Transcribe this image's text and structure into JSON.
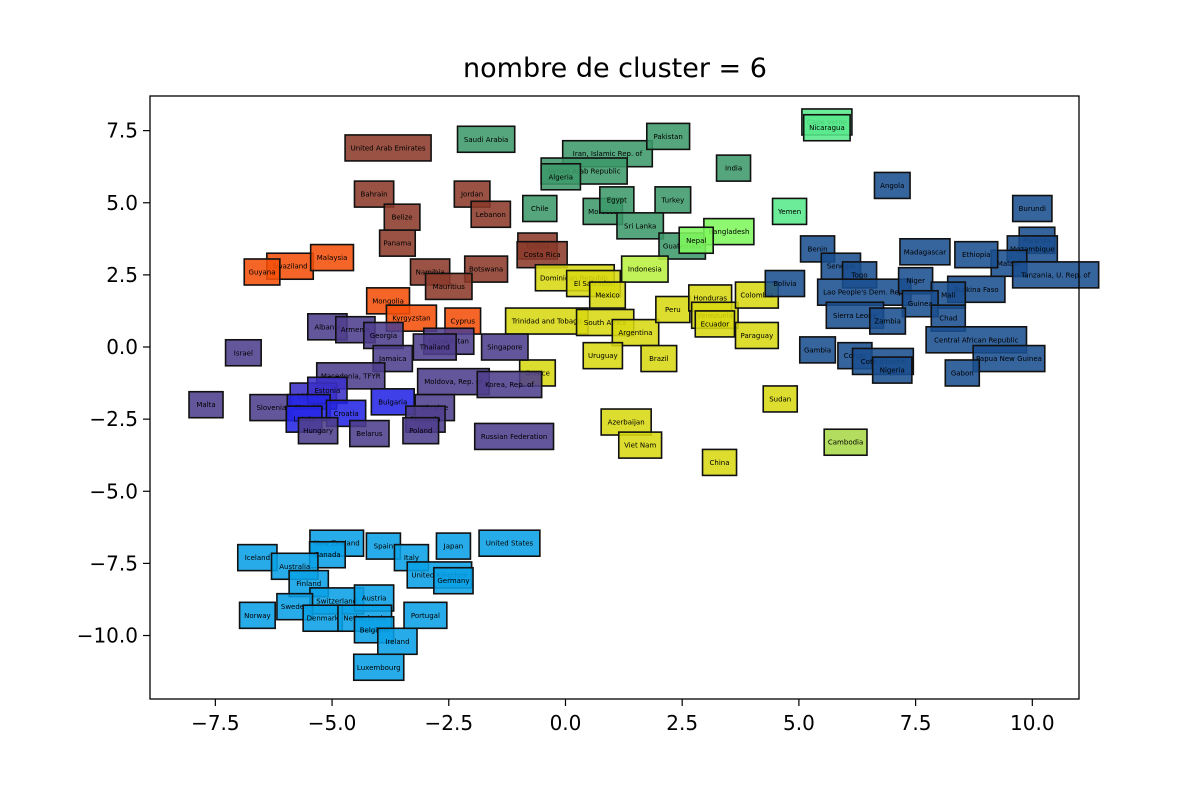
{
  "chart_data": {
    "type": "scatter",
    "title": "nombre de cluster = 6",
    "xlabel": "",
    "ylabel": "",
    "xlim": [
      -8.9,
      11.0
    ],
    "ylim": [
      -12.2,
      8.7
    ],
    "xticks": [
      -7.5,
      -5.0,
      -2.5,
      0.0,
      2.5,
      5.0,
      7.5,
      10.0
    ],
    "xtick_labels": [
      "−7.5",
      "−5.0",
      "−2.5",
      "0.0",
      "2.5",
      "5.0",
      "7.5",
      "10.0"
    ],
    "yticks": [
      -10.0,
      -7.5,
      -5.0,
      -2.5,
      0.0,
      2.5,
      5.0,
      7.5
    ],
    "ytick_labels": [
      "−10.0",
      "−7.5",
      "−5.0",
      "−2.5",
      "0.0",
      "2.5",
      "5.0",
      "7.5"
    ],
    "grid": false,
    "point_style": "labelled boxes",
    "colors": {
      "dark_red": "#8B3A2A",
      "orange": "#F5500A",
      "dark_green": "#3E9A6A",
      "light_green": "#7EF85C",
      "yellow": "#D8D812",
      "purple": "#4E3F8C",
      "blue": "#2626E6",
      "navy": "#1A4E8F",
      "sky": "#0AA0E6"
    },
    "points": [
      {
        "label": "United Arab Emirates",
        "x": -3.8,
        "y": 6.9,
        "color": "#8B3A2A"
      },
      {
        "label": "Bahrain",
        "x": -4.1,
        "y": 5.3,
        "color": "#8B3A2A"
      },
      {
        "label": "Belize",
        "x": -3.5,
        "y": 4.5,
        "color": "#8B3A2A"
      },
      {
        "label": "Panama",
        "x": -3.6,
        "y": 3.6,
        "color": "#8B3A2A"
      },
      {
        "label": "Jordan",
        "x": -2.0,
        "y": 5.3,
        "color": "#8B3A2A"
      },
      {
        "label": "Lebanon",
        "x": -1.6,
        "y": 4.6,
        "color": "#8B3A2A"
      },
      {
        "label": "Namibia",
        "x": -2.9,
        "y": 2.6,
        "color": "#8B3A2A"
      },
      {
        "label": "Botswana",
        "x": -1.7,
        "y": 2.7,
        "color": "#8B3A2A"
      },
      {
        "label": "Mauritius",
        "x": -2.5,
        "y": 2.1,
        "color": "#8B3A2A"
      },
      {
        "label": "Tunisia",
        "x": -0.6,
        "y": 3.5,
        "color": "#8B3A2A"
      },
      {
        "label": "Costa Rica",
        "x": -0.5,
        "y": 3.2,
        "color": "#8B3A2A"
      },
      {
        "label": "Swaziland",
        "x": -5.9,
        "y": 2.8,
        "color": "#F5500A"
      },
      {
        "label": "Guyana",
        "x": -6.5,
        "y": 2.6,
        "color": "#F5500A"
      },
      {
        "label": "Malaysia",
        "x": -5.0,
        "y": 3.1,
        "color": "#F5500A"
      },
      {
        "label": "Mongolia",
        "x": -3.8,
        "y": 1.6,
        "color": "#F5500A"
      },
      {
        "label": "Kyrgyzstan",
        "x": -3.3,
        "y": 1.0,
        "color": "#F5500A"
      },
      {
        "label": "Cyprus",
        "x": -2.2,
        "y": 0.9,
        "color": "#F5500A"
      },
      {
        "label": "Saudi Arabia",
        "x": -1.7,
        "y": 7.2,
        "color": "#3E9A6A"
      },
      {
        "label": "Iran, Islamic Rep. of",
        "x": 0.9,
        "y": 6.7,
        "color": "#3E9A6A"
      },
      {
        "label": "Pakistan",
        "x": 2.2,
        "y": 7.3,
        "color": "#3E9A6A"
      },
      {
        "label": "Syrian Arab Republic",
        "x": 0.4,
        "y": 6.1,
        "color": "#3E9A6A"
      },
      {
        "label": "Algeria",
        "x": -0.1,
        "y": 5.9,
        "color": "#3E9A6A"
      },
      {
        "label": "India",
        "x": 3.6,
        "y": 6.2,
        "color": "#3E9A6A"
      },
      {
        "label": "Chile",
        "x": -0.55,
        "y": 4.8,
        "color": "#3E9A6A"
      },
      {
        "label": "Morocco",
        "x": 0.8,
        "y": 4.7,
        "color": "#3E9A6A"
      },
      {
        "label": "Egypt",
        "x": 1.1,
        "y": 5.1,
        "color": "#3E9A6A"
      },
      {
        "label": "Turkey",
        "x": 2.3,
        "y": 5.1,
        "color": "#3E9A6A"
      },
      {
        "label": "Sri Lanka",
        "x": 1.6,
        "y": 4.2,
        "color": "#3E9A6A"
      },
      {
        "label": "Guatemala",
        "x": 2.5,
        "y": 3.5,
        "color": "#3E9A6A"
      },
      {
        "label": "Cape Verde",
        "x": 5.6,
        "y": 7.8,
        "color": "#58E88A"
      },
      {
        "label": "Nicaragua",
        "x": 5.6,
        "y": 7.6,
        "color": "#58E88A"
      },
      {
        "label": "Yemen",
        "x": 4.8,
        "y": 4.7,
        "color": "#58E88A"
      },
      {
        "label": "Bangladesh",
        "x": 3.5,
        "y": 4.0,
        "color": "#7EF85C"
      },
      {
        "label": "Nepal",
        "x": 2.8,
        "y": 3.7,
        "color": "#7EF85C"
      },
      {
        "label": "Indonesia",
        "x": 1.7,
        "y": 2.7,
        "color": "#B8F040"
      },
      {
        "label": "Dominican Republic",
        "x": 0.2,
        "y": 2.4,
        "color": "#D8D812"
      },
      {
        "label": "El Salvador",
        "x": 0.6,
        "y": 2.2,
        "color": "#D8D812"
      },
      {
        "label": "Mexico",
        "x": 0.9,
        "y": 1.8,
        "color": "#D8D812"
      },
      {
        "label": "Trinidad and Tobago",
        "x": -0.4,
        "y": 0.9,
        "color": "#D8D812"
      },
      {
        "label": "South Africa",
        "x": 0.85,
        "y": 0.85,
        "color": "#D8D812"
      },
      {
        "label": "Argentina",
        "x": 1.5,
        "y": 0.5,
        "color": "#D8D812"
      },
      {
        "label": "Peru",
        "x": 2.3,
        "y": 1.3,
        "color": "#D8D812"
      },
      {
        "label": "Honduras",
        "x": 3.1,
        "y": 1.7,
        "color": "#D8D812"
      },
      {
        "label": "Venezuela",
        "x": 3.2,
        "y": 1.1,
        "color": "#D8D812"
      },
      {
        "label": "Ecuador",
        "x": 3.2,
        "y": 0.8,
        "color": "#D8D812"
      },
      {
        "label": "Colombia",
        "x": 4.1,
        "y": 1.8,
        "color": "#D8D812"
      },
      {
        "label": "Paraguay",
        "x": 4.1,
        "y": 0.4,
        "color": "#D8D812"
      },
      {
        "label": "Uruguay",
        "x": 0.8,
        "y": -0.3,
        "color": "#D8D812"
      },
      {
        "label": "Brazil",
        "x": 2.0,
        "y": -0.4,
        "color": "#D8D812"
      },
      {
        "label": "Greece",
        "x": -0.6,
        "y": -0.9,
        "color": "#D8D812"
      },
      {
        "label": "Sudan",
        "x": 4.6,
        "y": -1.8,
        "color": "#D8D812"
      },
      {
        "label": "Azerbaijan",
        "x": 1.3,
        "y": -2.6,
        "color": "#D8D812"
      },
      {
        "label": "Viet Nam",
        "x": 1.6,
        "y": -3.4,
        "color": "#D8D812"
      },
      {
        "label": "China",
        "x": 3.3,
        "y": -4.0,
        "color": "#D8D812"
      },
      {
        "label": "Cambodia",
        "x": 6.0,
        "y": -3.3,
        "color": "#A8D848"
      },
      {
        "label": "Israel",
        "x": -6.9,
        "y": -0.2,
        "color": "#4E3F8C"
      },
      {
        "label": "Albania",
        "x": -5.1,
        "y": 0.7,
        "color": "#4E3F8C"
      },
      {
        "label": "Armenia",
        "x": -4.5,
        "y": 0.6,
        "color": "#4E3F8C"
      },
      {
        "label": "Georgia",
        "x": -3.9,
        "y": 0.4,
        "color": "#4E3F8C"
      },
      {
        "label": "Kazakhstan",
        "x": -2.5,
        "y": 0.2,
        "color": "#4E3F8C"
      },
      {
        "label": "Thailand",
        "x": -2.8,
        "y": 0.0,
        "color": "#4E3F8C"
      },
      {
        "label": "Singapore",
        "x": -1.3,
        "y": 0.0,
        "color": "#4E3F8C"
      },
      {
        "label": "Jamaica",
        "x": -3.7,
        "y": -0.4,
        "color": "#4E3F8C"
      },
      {
        "label": "Macedonia, TFYR",
        "x": -4.6,
        "y": -1.0,
        "color": "#4E3F8C"
      },
      {
        "label": "Moldova, Rep. of",
        "x": -2.4,
        "y": -1.2,
        "color": "#4E3F8C"
      },
      {
        "label": "Korea, Rep. of",
        "x": -1.2,
        "y": -1.3,
        "color": "#4E3F8C"
      },
      {
        "label": "Malta",
        "x": -7.7,
        "y": -2.0,
        "color": "#4E3F8C"
      },
      {
        "label": "Slovenia",
        "x": -6.3,
        "y": -2.1,
        "color": "#4E3F8C"
      },
      {
        "label": "Lithuania",
        "x": -5.4,
        "y": -1.7,
        "color": "#3A30C8"
      },
      {
        "label": "Estonia",
        "x": -5.1,
        "y": -1.5,
        "color": "#3A30C8"
      },
      {
        "label": "Slovakia",
        "x": -5.5,
        "y": -2.1,
        "color": "#2626E6"
      },
      {
        "label": "Croatia",
        "x": -4.7,
        "y": -2.3,
        "color": "#2626E6"
      },
      {
        "label": "Latvia",
        "x": -5.6,
        "y": -2.5,
        "color": "#2626E6"
      },
      {
        "label": "Bulgaria",
        "x": -3.7,
        "y": -1.9,
        "color": "#2626E6"
      },
      {
        "label": "Ukraine",
        "x": -2.8,
        "y": -2.1,
        "color": "#4E3F8C"
      },
      {
        "label": "Romania",
        "x": -3.0,
        "y": -2.5,
        "color": "#4E3F8C"
      },
      {
        "label": "Hungary",
        "x": -5.3,
        "y": -2.9,
        "color": "#4E3F8C"
      },
      {
        "label": "Belarus",
        "x": -4.2,
        "y": -3.0,
        "color": "#4E3F8C"
      },
      {
        "label": "Poland",
        "x": -3.1,
        "y": -2.9,
        "color": "#4E3F8C"
      },
      {
        "label": "Russian Federation",
        "x": -1.1,
        "y": -3.1,
        "color": "#4E3F8C"
      },
      {
        "label": "Angola",
        "x": 7.0,
        "y": 5.6,
        "color": "#1A4E8F"
      },
      {
        "label": "Burundi",
        "x": 10.0,
        "y": 4.8,
        "color": "#1A4E8F"
      },
      {
        "label": "Rwanda",
        "x": 10.1,
        "y": 3.7,
        "color": "#1A4E8F"
      },
      {
        "label": "Mozambique",
        "x": 10.0,
        "y": 3.4,
        "color": "#1A4E8F"
      },
      {
        "label": "Malawi",
        "x": 9.5,
        "y": 2.9,
        "color": "#1A4E8F"
      },
      {
        "label": "Tanzania, U. Rep. of",
        "x": 10.5,
        "y": 2.5,
        "color": "#1A4E8F"
      },
      {
        "label": "Ethiopia",
        "x": 8.8,
        "y": 3.2,
        "color": "#1A4E8F"
      },
      {
        "label": "Madagascar",
        "x": 7.7,
        "y": 3.3,
        "color": "#1A4E8F"
      },
      {
        "label": "Benin",
        "x": 5.4,
        "y": 3.4,
        "color": "#1A4E8F"
      },
      {
        "label": "Senegal",
        "x": 5.9,
        "y": 2.8,
        "color": "#1A4E8F"
      },
      {
        "label": "Togo",
        "x": 6.3,
        "y": 2.5,
        "color": "#1A4E8F"
      },
      {
        "label": "Bolivia",
        "x": 4.7,
        "y": 2.2,
        "color": "#1A4E8F"
      },
      {
        "label": "Lao People's Dem. Rep.",
        "x": 6.4,
        "y": 1.9,
        "color": "#1A4E8F"
      },
      {
        "label": "Niger",
        "x": 7.5,
        "y": 2.3,
        "color": "#1A4E8F"
      },
      {
        "label": "Burkina Faso",
        "x": 8.8,
        "y": 2.0,
        "color": "#1A4E8F"
      },
      {
        "label": "Mali",
        "x": 8.2,
        "y": 1.8,
        "color": "#1A4E8F"
      },
      {
        "label": "Guinea",
        "x": 7.6,
        "y": 1.5,
        "color": "#1A4E8F"
      },
      {
        "label": "Sierra Leone",
        "x": 6.2,
        "y": 1.1,
        "color": "#1A4E8F"
      },
      {
        "label": "Zambia",
        "x": 6.9,
        "y": 0.9,
        "color": "#1A4E8F"
      },
      {
        "label": "Chad",
        "x": 8.2,
        "y": 1.0,
        "color": "#1A4E8F"
      },
      {
        "label": "Central African Republic",
        "x": 8.8,
        "y": 0.25,
        "color": "#1A4E8F"
      },
      {
        "label": "Gambia",
        "x": 5.4,
        "y": -0.1,
        "color": "#1A4E8F"
      },
      {
        "label": "Congo",
        "x": 6.2,
        "y": -0.3,
        "color": "#1A4E8F"
      },
      {
        "label": "Cote d'Ivoire",
        "x": 6.8,
        "y": -0.5,
        "color": "#1A4E8F"
      },
      {
        "label": "Nigeria",
        "x": 7.0,
        "y": -0.8,
        "color": "#1A4E8F"
      },
      {
        "label": "Papua New Guinea",
        "x": 9.5,
        "y": -0.4,
        "color": "#1A4E8F"
      },
      {
        "label": "Gabon",
        "x": 8.5,
        "y": -0.9,
        "color": "#1A4E8F"
      },
      {
        "label": "United States",
        "x": -1.2,
        "y": -6.8,
        "color": "#0AA0E6"
      },
      {
        "label": "Iceland",
        "x": -6.6,
        "y": -7.3,
        "color": "#0AA0E6"
      },
      {
        "label": "New Zealand",
        "x": -4.9,
        "y": -6.8,
        "color": "#0AA0E6"
      },
      {
        "label": "Spain",
        "x": -3.9,
        "y": -6.9,
        "color": "#0AA0E6"
      },
      {
        "label": "Canada",
        "x": -5.1,
        "y": -7.2,
        "color": "#0AA0E6"
      },
      {
        "label": "Japan",
        "x": -2.4,
        "y": -6.9,
        "color": "#0AA0E6"
      },
      {
        "label": "Italy",
        "x": -3.3,
        "y": -7.3,
        "color": "#0AA0E6"
      },
      {
        "label": "Australia",
        "x": -5.8,
        "y": -7.6,
        "color": "#0AA0E6"
      },
      {
        "label": "United Kingdom",
        "x": -2.7,
        "y": -7.9,
        "color": "#0AA0E6"
      },
      {
        "label": "Germany",
        "x": -2.4,
        "y": -8.1,
        "color": "#0AA0E6"
      },
      {
        "label": "Finland",
        "x": -5.5,
        "y": -8.2,
        "color": "#0AA0E6"
      },
      {
        "label": "Switzerland",
        "x": -4.9,
        "y": -8.8,
        "color": "#0AA0E6"
      },
      {
        "label": "Austria",
        "x": -4.1,
        "y": -8.7,
        "color": "#0AA0E6"
      },
      {
        "label": "Sweden",
        "x": -5.8,
        "y": -9.0,
        "color": "#0AA0E6"
      },
      {
        "label": "Norway",
        "x": -6.6,
        "y": -9.3,
        "color": "#0AA0E6"
      },
      {
        "label": "Denmark",
        "x": -5.2,
        "y": -9.4,
        "color": "#0AA0E6"
      },
      {
        "label": "Netherlands",
        "x": -4.3,
        "y": -9.4,
        "color": "#0AA0E6"
      },
      {
        "label": "Portugal",
        "x": -3.0,
        "y": -9.3,
        "color": "#0AA0E6"
      },
      {
        "label": "Belgium",
        "x": -4.1,
        "y": -9.8,
        "color": "#0AA0E6"
      },
      {
        "label": "Ireland",
        "x": -3.6,
        "y": -10.2,
        "color": "#0AA0E6"
      },
      {
        "label": "Luxembourg",
        "x": -4.0,
        "y": -11.1,
        "color": "#0AA0E6"
      }
    ]
  }
}
